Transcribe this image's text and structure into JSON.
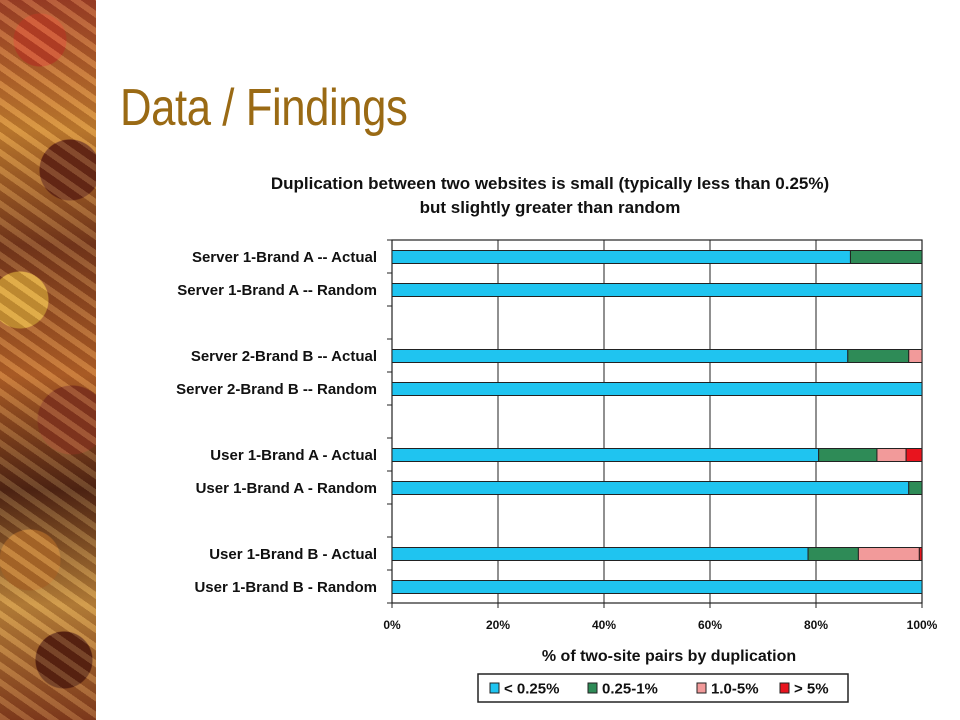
{
  "slide": {
    "title": "Data / Findings"
  },
  "chart_data": {
    "type": "bar",
    "orientation": "horizontal",
    "stacked": true,
    "percent_stacked": true,
    "title_lines": [
      "Duplication between two websites is small (typically less than 0.25%)",
      "but slightly greater than random"
    ],
    "categories": [
      "Server 1-Brand A -- Actual",
      "Server 1-Brand A -- Random",
      "Server 2-Brand B -- Actual",
      "Server 2-Brand B -- Random",
      "User 1-Brand A - Actual",
      "User 1-Brand A - Random",
      "User 1-Brand B - Actual",
      "User 1-Brand B - Random"
    ],
    "series": [
      {
        "name": "< 0.25%",
        "color": "#1fc4f0",
        "values": [
          86.5,
          100,
          86,
          100,
          80.5,
          97.5,
          78.5,
          100
        ]
      },
      {
        "name": "0.25-1%",
        "color": "#2e8b57",
        "values": [
          13.5,
          0,
          11.5,
          0,
          11,
          2.5,
          9.5,
          0
        ]
      },
      {
        "name": "1.0-5%",
        "color": "#f29a9a",
        "values": [
          0,
          0,
          2.5,
          0,
          5.5,
          0,
          11.5,
          0
        ]
      },
      {
        "name": "> 5%",
        "color": "#e8141e",
        "values": [
          0,
          0,
          0,
          0,
          3,
          0,
          0.5,
          0
        ]
      }
    ],
    "xlabel": "% of two-site pairs by duplication",
    "ylabel": "",
    "xlim": [
      0,
      100
    ],
    "x_ticks": [
      "0%",
      "20%",
      "40%",
      "60%",
      "80%",
      "100%"
    ],
    "grid": true,
    "legend_position": "bottom"
  }
}
